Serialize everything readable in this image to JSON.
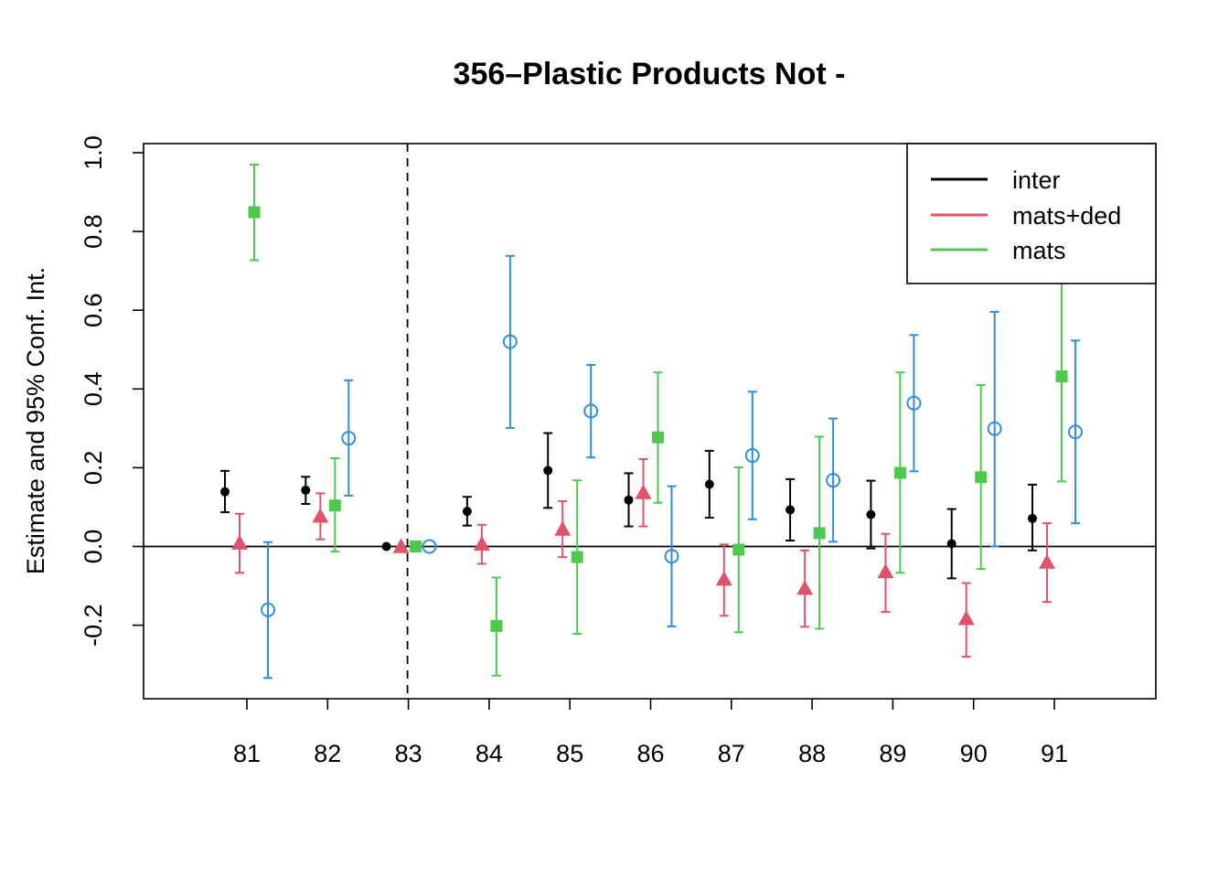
{
  "chart_data": {
    "type": "scatter",
    "title": "356–Plastic Products Not -",
    "xlabel": "",
    "ylabel": "Estimate and 95% Conf. Int.",
    "categories": [
      "81",
      "82",
      "83",
      "84",
      "85",
      "86",
      "87",
      "88",
      "89",
      "90",
      "91"
    ],
    "y_ticks": [
      "-0.2",
      "0.0",
      "0.2",
      "0.4",
      "0.6",
      "0.8",
      "1.0"
    ],
    "ylim": [
      -0.38,
      1.03
    ],
    "reference_line": 0,
    "reference_x": "83",
    "grid": false,
    "legend_position": "top-right",
    "series": [
      {
        "name": "inter",
        "color": "#000000",
        "marker": "filled-circle",
        "values": [
          0.139,
          0.143,
          0.0,
          0.089,
          0.193,
          0.118,
          0.158,
          0.093,
          0.081,
          0.007,
          0.071
        ],
        "lower": [
          0.087,
          0.108,
          0.0,
          0.053,
          0.098,
          0.051,
          0.073,
          0.015,
          -0.005,
          -0.081,
          -0.01
        ],
        "upper": [
          0.192,
          0.177,
          0.0,
          0.126,
          0.288,
          0.186,
          0.243,
          0.171,
          0.167,
          0.095,
          0.157
        ]
      },
      {
        "name": "mats+ded",
        "color": "#DF536B",
        "marker": "filled-triangle",
        "values": [
          0.009,
          0.077,
          0.0,
          0.006,
          0.044,
          0.137,
          -0.083,
          -0.106,
          -0.064,
          -0.183,
          -0.04
        ],
        "lower": [
          -0.067,
          0.018,
          0.0,
          -0.044,
          -0.027,
          0.051,
          -0.176,
          -0.204,
          -0.166,
          -0.28,
          -0.141
        ],
        "upper": [
          0.083,
          0.135,
          0.0,
          0.055,
          0.115,
          0.222,
          0.005,
          -0.01,
          0.032,
          -0.093,
          0.059
        ]
      },
      {
        "name": "mats",
        "color": "#4DC94D",
        "marker": "filled-square",
        "values": [
          0.849,
          0.104,
          0.0,
          -0.202,
          -0.027,
          0.277,
          -0.008,
          0.034,
          0.187,
          0.176,
          0.432
        ],
        "lower": [
          0.727,
          -0.013,
          0.0,
          -0.328,
          -0.222,
          0.111,
          -0.218,
          -0.209,
          -0.067,
          -0.057,
          0.165
        ],
        "upper": [
          0.97,
          0.224,
          0.0,
          -0.079,
          0.168,
          0.442,
          0.201,
          0.279,
          0.442,
          0.41,
          0.69
        ]
      },
      {
        "color": "#2F8EDB",
        "marker": "open-circle",
        "values": [
          -0.161,
          0.275,
          0.0,
          0.52,
          0.344,
          -0.025,
          0.231,
          0.168,
          0.364,
          0.299,
          0.291
        ],
        "lower": [
          -0.334,
          0.129,
          0.0,
          0.301,
          0.226,
          -0.203,
          0.069,
          0.012,
          0.191,
          0.0,
          0.059
        ],
        "upper": [
          0.011,
          0.422,
          0.0,
          0.738,
          0.461,
          0.153,
          0.393,
          0.325,
          0.537,
          0.596,
          0.523
        ]
      }
    ],
    "legend": [
      {
        "label": "inter",
        "color": "#000000"
      },
      {
        "label": "mats+ded",
        "color": "#DF536B"
      },
      {
        "label": "mats",
        "color": "#4DC94D"
      }
    ]
  }
}
